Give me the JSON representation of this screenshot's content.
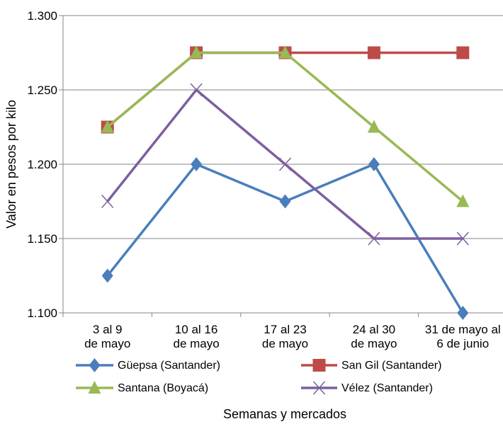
{
  "chart_data": {
    "type": "line",
    "title": "",
    "xlabel": "Semanas y mercados",
    "ylabel": "Valor en pesos por kilo",
    "categories": [
      [
        "3 al 9",
        "de mayo"
      ],
      [
        "10 al 16",
        "de mayo"
      ],
      [
        "17 al 23",
        "de mayo"
      ],
      [
        "24 al 30",
        "de mayo"
      ],
      [
        "31 de mayo al",
        "6 de junio"
      ]
    ],
    "ylim": [
      1100,
      1300
    ],
    "yticks": [
      1100,
      1150,
      1200,
      1250,
      1300
    ],
    "ytick_labels": [
      "1.100",
      "1.150",
      "1.200",
      "1.250",
      "1.300"
    ],
    "grid": true,
    "legend_position": "bottom",
    "series": [
      {
        "name": "Güepsa (Santander)",
        "values": [
          1125,
          1200,
          1175,
          1200,
          1100
        ],
        "color": "#4a7ebb",
        "marker": "diamond"
      },
      {
        "name": "San Gil (Santander)",
        "values": [
          1225,
          1275,
          1275,
          1275,
          1275
        ],
        "color": "#be4b48",
        "marker": "square"
      },
      {
        "name": "Santana (Boyacá)",
        "values": [
          1225,
          1275,
          1275,
          1225,
          1175
        ],
        "color": "#98b954",
        "marker": "triangle"
      },
      {
        "name": "Vélez (Santander)",
        "values": [
          1175,
          1250,
          1200,
          1150,
          1150
        ],
        "color": "#7d5fa0",
        "marker": "x"
      }
    ]
  }
}
